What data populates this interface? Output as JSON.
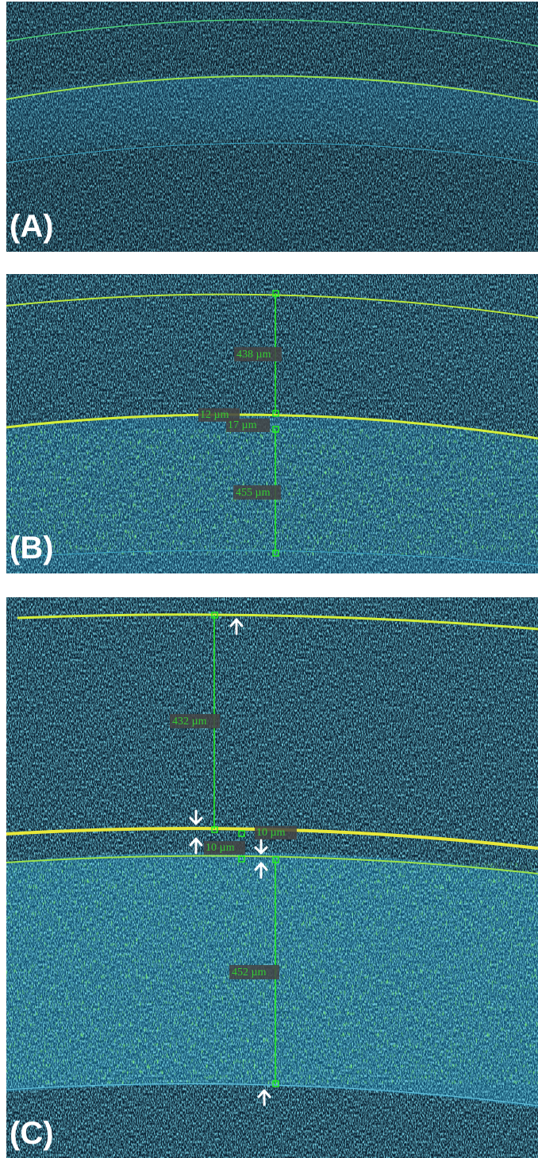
{
  "panels": [
    {
      "label": "(A)"
    },
    {
      "label": "(B)",
      "measurements": [
        "438 µm",
        "12 µm",
        "17 µm",
        "455 µm"
      ]
    },
    {
      "label": "(C)",
      "measurements": [
        "432 µm",
        "10 µm",
        "10 µm",
        "452 µm"
      ]
    }
  ]
}
